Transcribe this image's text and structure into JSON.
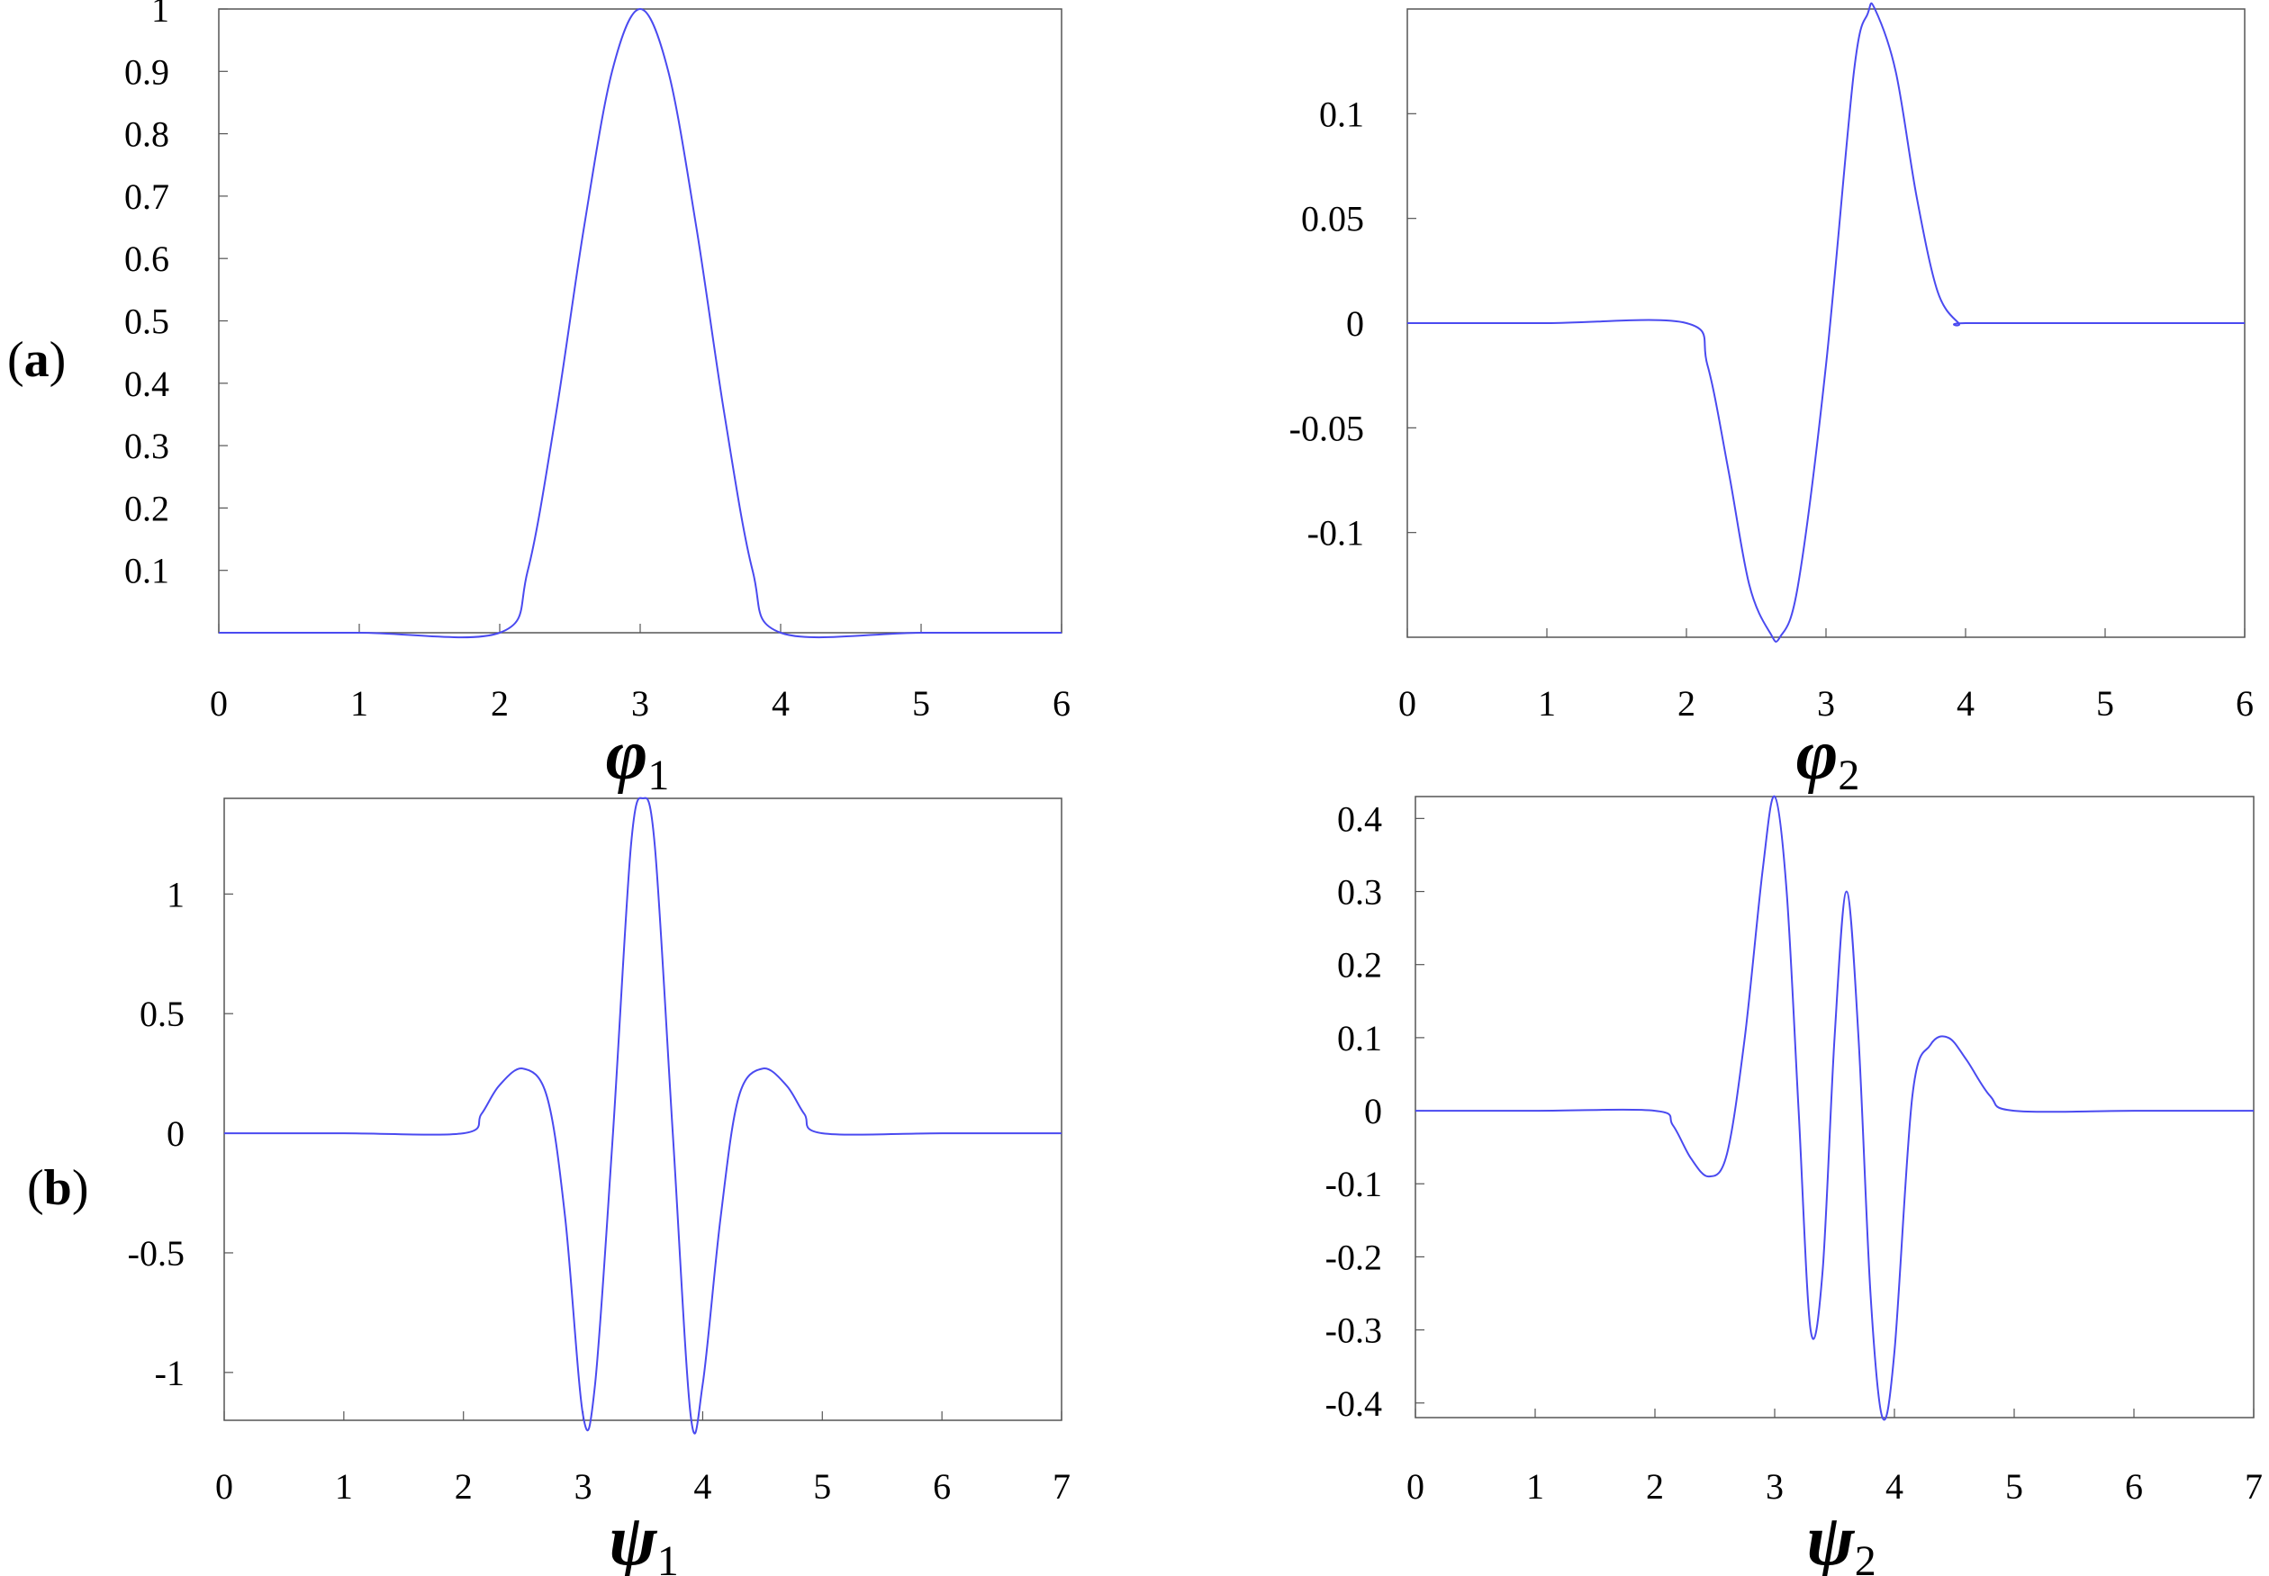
{
  "panel_labels": {
    "a": {
      "open": "(",
      "letter": "a",
      "close": ")"
    },
    "b": {
      "open": "(",
      "letter": "b",
      "close": ")"
    }
  },
  "colors": {
    "line": "#4a4af0",
    "axes": "#555555",
    "text": "#000000"
  },
  "chart_data": [
    {
      "id": "phi1",
      "type": "line",
      "xlabel": {
        "symbol": "φ",
        "subscript": "1"
      },
      "xlim": [
        0,
        6
      ],
      "ylim": [
        0,
        1
      ],
      "xticks": [
        0,
        1,
        2,
        3,
        4,
        5,
        6
      ],
      "xtick_labels": [
        "0",
        "1",
        "2",
        "3",
        "4",
        "5",
        "6"
      ],
      "yticks": [
        0.1,
        0.2,
        0.3,
        0.4,
        0.5,
        0.6,
        0.7,
        0.8,
        0.9,
        1
      ],
      "ytick_labels": [
        "0.1",
        "0.2",
        "0.3",
        "0.4",
        "0.5",
        "0.6",
        "0.7",
        "0.8",
        "0.9",
        "1"
      ],
      "grid": false,
      "x": [
        0,
        1,
        2,
        2.2,
        2.4,
        2.6,
        2.8,
        3,
        3.2,
        3.4,
        3.6,
        3.8,
        4,
        5,
        6
      ],
      "y": [
        0,
        0,
        0,
        0.1,
        0.35,
        0.65,
        0.9,
        1,
        0.9,
        0.65,
        0.35,
        0.1,
        0,
        0,
        0
      ]
    },
    {
      "id": "phi2",
      "type": "line",
      "xlabel": {
        "symbol": "φ",
        "subscript": "2"
      },
      "xlim": [
        0,
        6
      ],
      "ylim": [
        -0.15,
        0.15
      ],
      "xticks": [
        0,
        1,
        2,
        3,
        4,
        5,
        6
      ],
      "xtick_labels": [
        "0",
        "1",
        "2",
        "3",
        "4",
        "5",
        "6"
      ],
      "yticks": [
        -0.1,
        -0.05,
        0,
        0.05,
        0.1
      ],
      "ytick_labels": [
        "-0.1",
        "-0.05",
        "0",
        "0.05",
        "0.1"
      ],
      "grid": false,
      "x": [
        0,
        1,
        2,
        2.15,
        2.3,
        2.45,
        2.6,
        2.67,
        2.8,
        3,
        3.2,
        3.3,
        3.35,
        3.5,
        3.65,
        3.8,
        3.95,
        4,
        5,
        6
      ],
      "y": [
        0,
        0,
        0,
        -0.02,
        -0.07,
        -0.125,
        -0.148,
        -0.15,
        -0.125,
        -0.02,
        0.12,
        0.148,
        0.15,
        0.12,
        0.06,
        0.015,
        0,
        0,
        0,
        0
      ]
    },
    {
      "id": "psi1",
      "type": "line",
      "xlabel": {
        "symbol": "ψ",
        "subscript": "1"
      },
      "xlim": [
        0,
        7
      ],
      "ylim": [
        -1.2,
        1.4
      ],
      "xticks": [
        0,
        1,
        2,
        3,
        4,
        5,
        6,
        7
      ],
      "xtick_labels": [
        "0",
        "1",
        "2",
        "3",
        "4",
        "5",
        "6",
        "7"
      ],
      "yticks": [
        -1,
        -0.5,
        0,
        0.5,
        1
      ],
      "ytick_labels": [
        "-1",
        "-0.5",
        "0",
        "0.5",
        "1"
      ],
      "grid": false,
      "x": [
        0,
        1,
        2,
        2.15,
        2.3,
        2.5,
        2.7,
        2.85,
        3,
        3.1,
        3.25,
        3.4,
        3.5,
        3.6,
        3.75,
        3.9,
        4.0,
        4.15,
        4.3,
        4.5,
        4.7,
        4.85,
        5,
        6,
        7
      ],
      "y": [
        0,
        0,
        0,
        0.08,
        0.2,
        0.27,
        0.15,
        -0.35,
        -1.18,
        -1.05,
        0.0,
        1.2,
        1.4,
        1.2,
        0.0,
        -1.18,
        -1.05,
        -0.35,
        0.15,
        0.27,
        0.2,
        0.08,
        0,
        0,
        0
      ]
    },
    {
      "id": "psi2",
      "type": "line",
      "xlabel": {
        "symbol": "ψ",
        "subscript": "2"
      },
      "xlim": [
        0,
        7
      ],
      "ylim": [
        -0.42,
        0.43
      ],
      "xticks": [
        0,
        1,
        2,
        3,
        4,
        5,
        6,
        7
      ],
      "xtick_labels": [
        "0",
        "1",
        "2",
        "3",
        "4",
        "5",
        "6",
        "7"
      ],
      "yticks": [
        -0.4,
        -0.3,
        -0.2,
        -0.1,
        0,
        0.1,
        0.2,
        0.3,
        0.4
      ],
      "ytick_labels": [
        "-0.4",
        "-0.3",
        "-0.2",
        "-0.1",
        "0",
        "0.1",
        "0.2",
        "0.3",
        "0.4"
      ],
      "grid": false,
      "x": [
        0,
        1,
        2,
        2.15,
        2.3,
        2.45,
        2.6,
        2.75,
        2.9,
        3.0,
        3.1,
        3.2,
        3.3,
        3.4,
        3.5,
        3.6,
        3.7,
        3.8,
        3.9,
        4.0,
        4.15,
        4.3,
        4.45,
        4.6,
        4.8,
        5,
        6,
        7
      ],
      "y": [
        0,
        0,
        0,
        -0.02,
        -0.065,
        -0.09,
        -0.06,
        0.1,
        0.33,
        0.43,
        0.3,
        0.0,
        -0.3,
        -0.22,
        0.1,
        0.3,
        0.1,
        -0.25,
        -0.42,
        -0.33,
        0.02,
        0.09,
        0.1,
        0.07,
        0.02,
        0,
        0,
        0
      ]
    }
  ]
}
